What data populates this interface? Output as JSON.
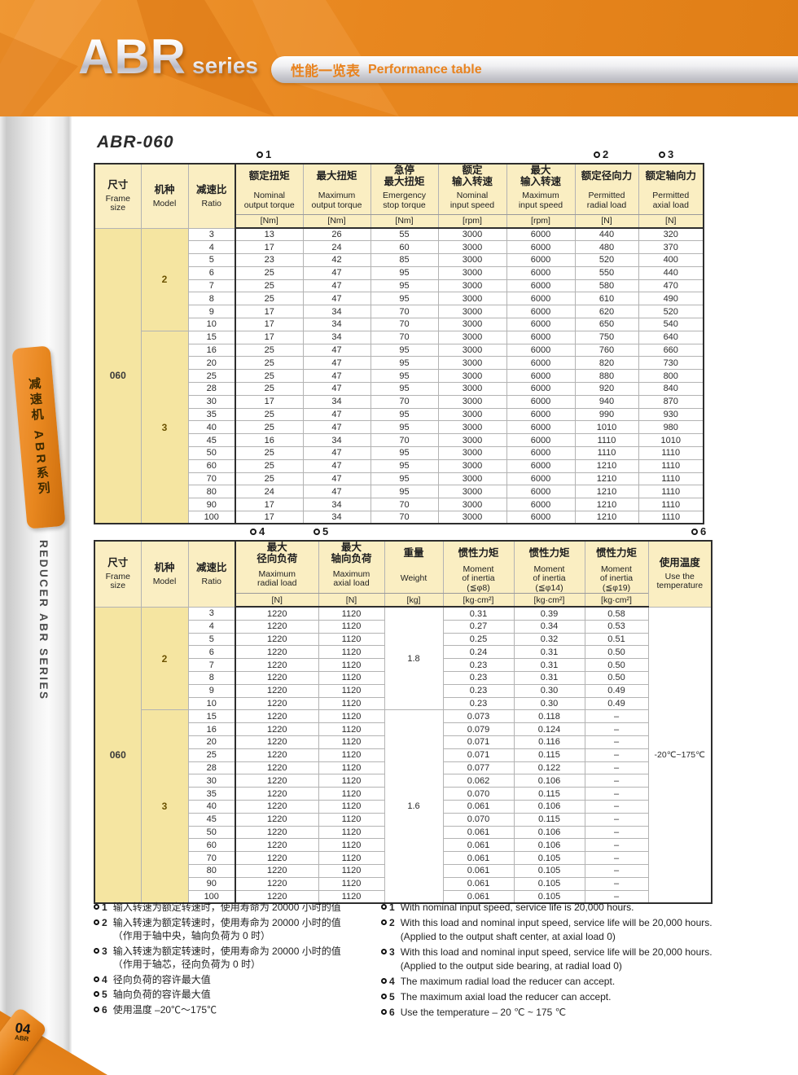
{
  "header": {
    "logo_main": "ABR",
    "logo_sub": "series",
    "bar_zh": "性能一览表",
    "bar_en": "Performance table"
  },
  "sidebar": {
    "tab_zh": "减速机 ABR系列",
    "tab_en": "REDUCER ABR SERIES",
    "page_number": "04",
    "page_label": "ABR"
  },
  "section_title": "ABR-060",
  "colors": {
    "accent_orange": "#e8871f",
    "header_cream": "#faeec2",
    "side_cream": "#f5e5a1"
  },
  "table1": {
    "markers": [
      "1",
      "2",
      "3"
    ],
    "frame_size": "060",
    "columns": [
      {
        "key": "frame",
        "zh": "尺寸",
        "en": "Frame\nsize",
        "unit": "",
        "merged": true
      },
      {
        "key": "model",
        "zh": "机种",
        "en": "Model",
        "unit": "",
        "merged": true
      },
      {
        "key": "ratio",
        "zh": "减速比",
        "en": "Ratio",
        "unit": "",
        "merged": true
      },
      {
        "key": "nominal_torque",
        "zh": "额定扭矩",
        "en": "Nominal\noutput torque",
        "unit": "[Nm]"
      },
      {
        "key": "max_torque",
        "zh": "最大扭矩",
        "en": "Maximum\noutput torque",
        "unit": "[Nm]"
      },
      {
        "key": "estop_torque",
        "zh": "急停\n最大扭矩",
        "en": "Emergency\nstop torque",
        "unit": "[Nm]"
      },
      {
        "key": "nominal_speed",
        "zh": "额定\n输入转速",
        "en": "Nominal\ninput speed",
        "unit": "[rpm]"
      },
      {
        "key": "max_speed",
        "zh": "最大\n输入转速",
        "en": "Maximum\ninput speed",
        "unit": "[rpm]"
      },
      {
        "key": "radial",
        "zh": "额定径向力",
        "en": "Permitted\nradial load",
        "unit": "[N]"
      },
      {
        "key": "axial",
        "zh": "额定轴向力",
        "en": "Permitted\naxial load",
        "unit": "[N]"
      }
    ],
    "sections": [
      {
        "model": "2",
        "rows": [
          [
            "3",
            "13",
            "26",
            "55",
            "3000",
            "6000",
            "440",
            "320"
          ],
          [
            "4",
            "17",
            "24",
            "60",
            "3000",
            "6000",
            "480",
            "370"
          ],
          [
            "5",
            "23",
            "42",
            "85",
            "3000",
            "6000",
            "520",
            "400"
          ],
          [
            "6",
            "25",
            "47",
            "95",
            "3000",
            "6000",
            "550",
            "440"
          ],
          [
            "7",
            "25",
            "47",
            "95",
            "3000",
            "6000",
            "580",
            "470"
          ],
          [
            "8",
            "25",
            "47",
            "95",
            "3000",
            "6000",
            "610",
            "490"
          ],
          [
            "9",
            "17",
            "34",
            "70",
            "3000",
            "6000",
            "620",
            "520"
          ],
          [
            "10",
            "17",
            "34",
            "70",
            "3000",
            "6000",
            "650",
            "540"
          ]
        ]
      },
      {
        "model": "3",
        "rows": [
          [
            "15",
            "17",
            "34",
            "70",
            "3000",
            "6000",
            "750",
            "640"
          ],
          [
            "16",
            "25",
            "47",
            "95",
            "3000",
            "6000",
            "760",
            "660"
          ],
          [
            "20",
            "25",
            "47",
            "95",
            "3000",
            "6000",
            "820",
            "730"
          ],
          [
            "25",
            "25",
            "47",
            "95",
            "3000",
            "6000",
            "880",
            "800"
          ],
          [
            "28",
            "25",
            "47",
            "95",
            "3000",
            "6000",
            "920",
            "840"
          ],
          [
            "30",
            "17",
            "34",
            "70",
            "3000",
            "6000",
            "940",
            "870"
          ],
          [
            "35",
            "25",
            "47",
            "95",
            "3000",
            "6000",
            "990",
            "930"
          ],
          [
            "40",
            "25",
            "47",
            "95",
            "3000",
            "6000",
            "1010",
            "980"
          ],
          [
            "45",
            "16",
            "34",
            "70",
            "3000",
            "6000",
            "1110",
            "1010"
          ],
          [
            "50",
            "25",
            "47",
            "95",
            "3000",
            "6000",
            "1110",
            "1110"
          ],
          [
            "60",
            "25",
            "47",
            "95",
            "3000",
            "6000",
            "1210",
            "1110"
          ],
          [
            "70",
            "25",
            "47",
            "95",
            "3000",
            "6000",
            "1210",
            "1110"
          ],
          [
            "80",
            "24",
            "47",
            "95",
            "3000",
            "6000",
            "1210",
            "1110"
          ],
          [
            "90",
            "17",
            "34",
            "70",
            "3000",
            "6000",
            "1210",
            "1110"
          ],
          [
            "100",
            "17",
            "34",
            "70",
            "3000",
            "6000",
            "1210",
            "1110"
          ]
        ]
      }
    ]
  },
  "table2": {
    "markers": [
      "4",
      "5",
      "6"
    ],
    "frame_size": "060",
    "temperature": "-20℃~175℃",
    "columns": [
      {
        "key": "frame",
        "zh": "尺寸",
        "en": "Frame\nsize",
        "unit": "",
        "merged": true
      },
      {
        "key": "model",
        "zh": "机种",
        "en": "Model",
        "unit": "",
        "merged": true
      },
      {
        "key": "ratio",
        "zh": "减速比",
        "en": "Ratio",
        "unit": "",
        "merged": true
      },
      {
        "key": "max_radial",
        "zh": "最大\n径向负荷",
        "en": "Maximum\nradial load",
        "unit": "[N]"
      },
      {
        "key": "max_axial",
        "zh": "最大\n轴向负荷",
        "en": "Maximum\naxial load",
        "unit": "[N]"
      },
      {
        "key": "weight",
        "zh": "重量",
        "en": "Weight",
        "unit": "[kg]"
      },
      {
        "key": "inertia8",
        "zh": "惯性力矩",
        "en": "Moment\nof inertia\n(≦φ8)",
        "unit": "[kg·cm²]"
      },
      {
        "key": "inertia14",
        "zh": "惯性力矩",
        "en": "Moment\nof inertia\n(≦φ14)",
        "unit": "[kg·cm²]"
      },
      {
        "key": "inertia19",
        "zh": "惯性力矩",
        "en": "Moment\nof inertia\n(≦φ19)",
        "unit": "[kg·cm²]"
      },
      {
        "key": "temp",
        "zh": "使用温度",
        "en": "Use the\ntemperature",
        "unit": "",
        "merged": true
      }
    ],
    "sections": [
      {
        "model": "2",
        "weight": "1.8",
        "rows": [
          [
            "3",
            "1220",
            "1120",
            "0.31",
            "0.39",
            "0.58"
          ],
          [
            "4",
            "1220",
            "1120",
            "0.27",
            "0.34",
            "0.53"
          ],
          [
            "5",
            "1220",
            "1120",
            "0.25",
            "0.32",
            "0.51"
          ],
          [
            "6",
            "1220",
            "1120",
            "0.24",
            "0.31",
            "0.50"
          ],
          [
            "7",
            "1220",
            "1120",
            "0.23",
            "0.31",
            "0.50"
          ],
          [
            "8",
            "1220",
            "1120",
            "0.23",
            "0.31",
            "0.50"
          ],
          [
            "9",
            "1220",
            "1120",
            "0.23",
            "0.30",
            "0.49"
          ],
          [
            "10",
            "1220",
            "1120",
            "0.23",
            "0.30",
            "0.49"
          ]
        ]
      },
      {
        "model": "3",
        "weight": "1.6",
        "rows": [
          [
            "15",
            "1220",
            "1120",
            "0.073",
            "0.118",
            "–"
          ],
          [
            "16",
            "1220",
            "1120",
            "0.079",
            "0.124",
            "–"
          ],
          [
            "20",
            "1220",
            "1120",
            "0.071",
            "0.116",
            "–"
          ],
          [
            "25",
            "1220",
            "1120",
            "0.071",
            "0.115",
            "–"
          ],
          [
            "28",
            "1220",
            "1120",
            "0.077",
            "0.122",
            "–"
          ],
          [
            "30",
            "1220",
            "1120",
            "0.062",
            "0.106",
            "–"
          ],
          [
            "35",
            "1220",
            "1120",
            "0.070",
            "0.115",
            "–"
          ],
          [
            "40",
            "1220",
            "1120",
            "0.061",
            "0.106",
            "–"
          ],
          [
            "45",
            "1220",
            "1120",
            "0.070",
            "0.115",
            "–"
          ],
          [
            "50",
            "1220",
            "1120",
            "0.061",
            "0.106",
            "–"
          ],
          [
            "60",
            "1220",
            "1120",
            "0.061",
            "0.106",
            "–"
          ],
          [
            "70",
            "1220",
            "1120",
            "0.061",
            "0.105",
            "–"
          ],
          [
            "80",
            "1220",
            "1120",
            "0.061",
            "0.105",
            "–"
          ],
          [
            "90",
            "1220",
            "1120",
            "0.061",
            "0.105",
            "–"
          ],
          [
            "100",
            "1220",
            "1120",
            "0.061",
            "0.105",
            "–"
          ]
        ]
      }
    ]
  },
  "notes_zh": [
    {
      "n": "1",
      "lines": [
        "输入转速为额定转速时，使用寿命为 20000 小时的值"
      ]
    },
    {
      "n": "2",
      "lines": [
        "输入转速为额定转速时，使用寿命为 20000 小时的值",
        "（作用于轴中央，轴向负荷为 0 时）"
      ]
    },
    {
      "n": "3",
      "lines": [
        "输入转速为额定转速时，使用寿命为 20000 小时的值",
        "（作用于轴芯，径向负荷为 0 时）"
      ]
    },
    {
      "n": "4",
      "lines": [
        "径向负荷的容许最大值"
      ]
    },
    {
      "n": "5",
      "lines": [
        "轴向负荷的容许最大值"
      ]
    },
    {
      "n": "6",
      "lines": [
        "使用温度 –20℃～175℃"
      ]
    }
  ],
  "notes_en": [
    {
      "n": "1",
      "lines": [
        "With nominal input speed, service life is 20,000 hours."
      ]
    },
    {
      "n": "2",
      "lines": [
        "With this load and nominal input speed, service life will be 20,000 hours.",
        "(Applied to the output shaft center, at axial load 0)"
      ]
    },
    {
      "n": "3",
      "lines": [
        "With this load and nominal input speed, service life will be 20,000 hours.",
        "(Applied to the output side bearing, at radial load 0)"
      ]
    },
    {
      "n": "4",
      "lines": [
        "The maximum radial load the reducer can accept."
      ]
    },
    {
      "n": "5",
      "lines": [
        "The maximum axial load the reducer can accept."
      ]
    },
    {
      "n": "6",
      "lines": [
        "Use the temperature – 20 ℃ ~ 175 ℃"
      ]
    }
  ]
}
